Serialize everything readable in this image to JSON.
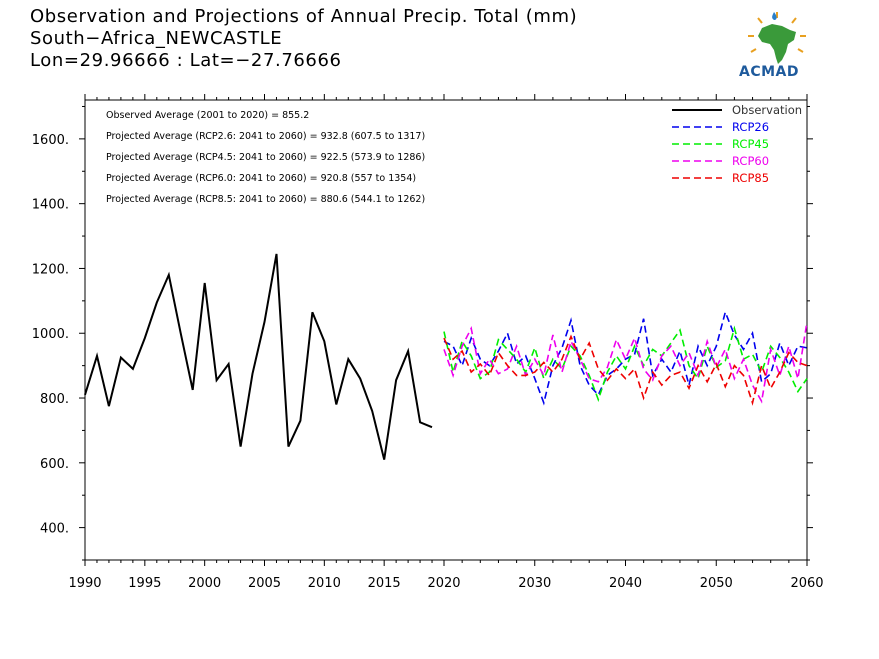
{
  "titles": {
    "line1": "Observation and Projections of Annual Precip. Total (mm)",
    "line2": "South−Africa_NEWCASTLE",
    "line3": "Lon=29.96666 : Lat=−27.76666"
  },
  "logo": {
    "text": "ACMAD",
    "icon": "africa-logo-icon"
  },
  "annotations": [
    "Observed Average (2001 to 2020) = 855.2",
    "Projected Average (RCP2.6: 2041 to 2060) = 932.8 (607.5 to 1317)",
    "Projected Average (RCP4.5: 2041 to 2060) = 922.5 (573.9 to 1286)",
    "Projected Average (RCP6.0: 2041 to 2060) = 920.8 (557 to 1354)",
    "Projected Average (RCP8.5: 2041 to 2060) = 880.6 (544.1 to 1262)"
  ],
  "chart_data": {
    "type": "line",
    "title": "Observation and Projections of Annual Precip. Total (mm)",
    "xlabel": "",
    "ylabel": "",
    "ylim": [
      300,
      1720
    ],
    "y_ticks": [
      400,
      600,
      800,
      1000,
      1200,
      1400,
      1600
    ],
    "y_tick_labels": [
      "400.",
      "600.",
      "800.",
      "1000.",
      "1200.",
      "1400.",
      "1600."
    ],
    "x_segments": [
      {
        "range": [
          1990,
          2020
        ],
        "ticks": [
          1990,
          1995,
          2000,
          2005,
          2010,
          2015,
          2020
        ],
        "tick_labels": [
          "1990",
          "1995",
          "2000",
          "2005",
          "2010",
          "2015",
          "2020"
        ]
      },
      {
        "range": [
          2020,
          2060
        ],
        "ticks": [
          2030,
          2040,
          2050,
          2060
        ],
        "tick_labels": [
          "2030",
          "2040",
          "2050",
          "2060"
        ]
      }
    ],
    "grid": false,
    "legend_position": "top-right",
    "series": [
      {
        "name": "Observation",
        "color": "#000000",
        "dash": "solid",
        "x": [
          1990,
          1991,
          1992,
          1993,
          1994,
          1995,
          1996,
          1997,
          1998,
          1999,
          2000,
          2001,
          2002,
          2003,
          2004,
          2005,
          2006,
          2007,
          2008,
          2009,
          2010,
          2011,
          2012,
          2013,
          2014,
          2015,
          2016,
          2017,
          2018,
          2019,
          2020
        ],
        "values": [
          810,
          930,
          775,
          925,
          890,
          985,
          1095,
          1180,
          1000,
          825,
          1155,
          855,
          905,
          650,
          875,
          1035,
          1245,
          650,
          730,
          1065,
          975,
          780,
          920,
          860,
          760,
          610,
          855,
          945,
          725,
          710,
          null
        ]
      },
      {
        "name": "RCP26",
        "color": "#0000ee",
        "dash": "dashed",
        "x": [
          2020,
          2021,
          2022,
          2023,
          2024,
          2025,
          2026,
          2027,
          2028,
          2029,
          2030,
          2031,
          2032,
          2033,
          2034,
          2035,
          2036,
          2037,
          2038,
          2039,
          2040,
          2041,
          2042,
          2043,
          2044,
          2045,
          2046,
          2047,
          2048,
          2049,
          2050,
          2051,
          2052,
          2053,
          2054,
          2055,
          2056,
          2057,
          2058,
          2059,
          2060
        ],
        "values": [
          975,
          960,
          900,
          985,
          920,
          900,
          945,
          1000,
          905,
          930,
          860,
          785,
          900,
          955,
          1040,
          900,
          840,
          810,
          870,
          890,
          920,
          935,
          1045,
          870,
          920,
          880,
          945,
          840,
          960,
          900,
          960,
          1065,
          995,
          950,
          1000,
          850,
          875,
          970,
          900,
          960,
          955
        ]
      },
      {
        "name": "RCP45",
        "color": "#00ee00",
        "dash": "dashed",
        "x": [
          2020,
          2021,
          2022,
          2023,
          2024,
          2025,
          2026,
          2027,
          2028,
          2029,
          2030,
          2031,
          2032,
          2033,
          2034,
          2035,
          2036,
          2037,
          2038,
          2039,
          2040,
          2041,
          2042,
          2043,
          2044,
          2045,
          2046,
          2047,
          2048,
          2049,
          2050,
          2051,
          2052,
          2053,
          2054,
          2055,
          2056,
          2057,
          2058,
          2059,
          2060
        ],
        "values": [
          1005,
          880,
          975,
          930,
          860,
          880,
          980,
          950,
          920,
          880,
          955,
          860,
          920,
          890,
          960,
          930,
          870,
          795,
          880,
          930,
          890,
          960,
          900,
          950,
          930,
          970,
          1010,
          900,
          860,
          960,
          895,
          915,
          1015,
          920,
          935,
          880,
          960,
          925,
          880,
          820,
          860
        ]
      },
      {
        "name": "RCP60",
        "color": "#ee00ee",
        "dash": "dashed",
        "x": [
          2020,
          2021,
          2022,
          2023,
          2024,
          2025,
          2026,
          2027,
          2028,
          2029,
          2030,
          2031,
          2032,
          2033,
          2034,
          2035,
          2036,
          2037,
          2038,
          2039,
          2040,
          2041,
          2042,
          2043,
          2044,
          2045,
          2046,
          2047,
          2048,
          2049,
          2050,
          2051,
          2052,
          2053,
          2054,
          2055,
          2056,
          2057,
          2058,
          2059,
          2060
        ],
        "values": [
          950,
          870,
          960,
          1015,
          875,
          920,
          875,
          890,
          960,
          870,
          920,
          870,
          995,
          880,
          975,
          920,
          860,
          850,
          895,
          980,
          920,
          985,
          890,
          855,
          930,
          960,
          900,
          940,
          870,
          975,
          895,
          950,
          860,
          920,
          840,
          790,
          950,
          870,
          960,
          860,
          1035
        ]
      },
      {
        "name": "RCP85",
        "color": "#ee0000",
        "dash": "dashed",
        "x": [
          2020,
          2021,
          2022,
          2023,
          2024,
          2025,
          2026,
          2027,
          2028,
          2029,
          2030,
          2031,
          2032,
          2033,
          2034,
          2035,
          2036,
          2037,
          2038,
          2039,
          2040,
          2041,
          2042,
          2043,
          2044,
          2045,
          2046,
          2047,
          2048,
          2049,
          2050,
          2051,
          2052,
          2053,
          2054,
          2055,
          2056,
          2057,
          2058,
          2059,
          2060
        ],
        "values": [
          985,
          920,
          945,
          880,
          905,
          870,
          940,
          900,
          870,
          870,
          880,
          910,
          880,
          920,
          990,
          920,
          970,
          890,
          855,
          890,
          860,
          890,
          800,
          880,
          840,
          870,
          880,
          830,
          900,
          850,
          905,
          835,
          900,
          870,
          785,
          900,
          830,
          880,
          940,
          910,
          900
        ]
      }
    ]
  }
}
